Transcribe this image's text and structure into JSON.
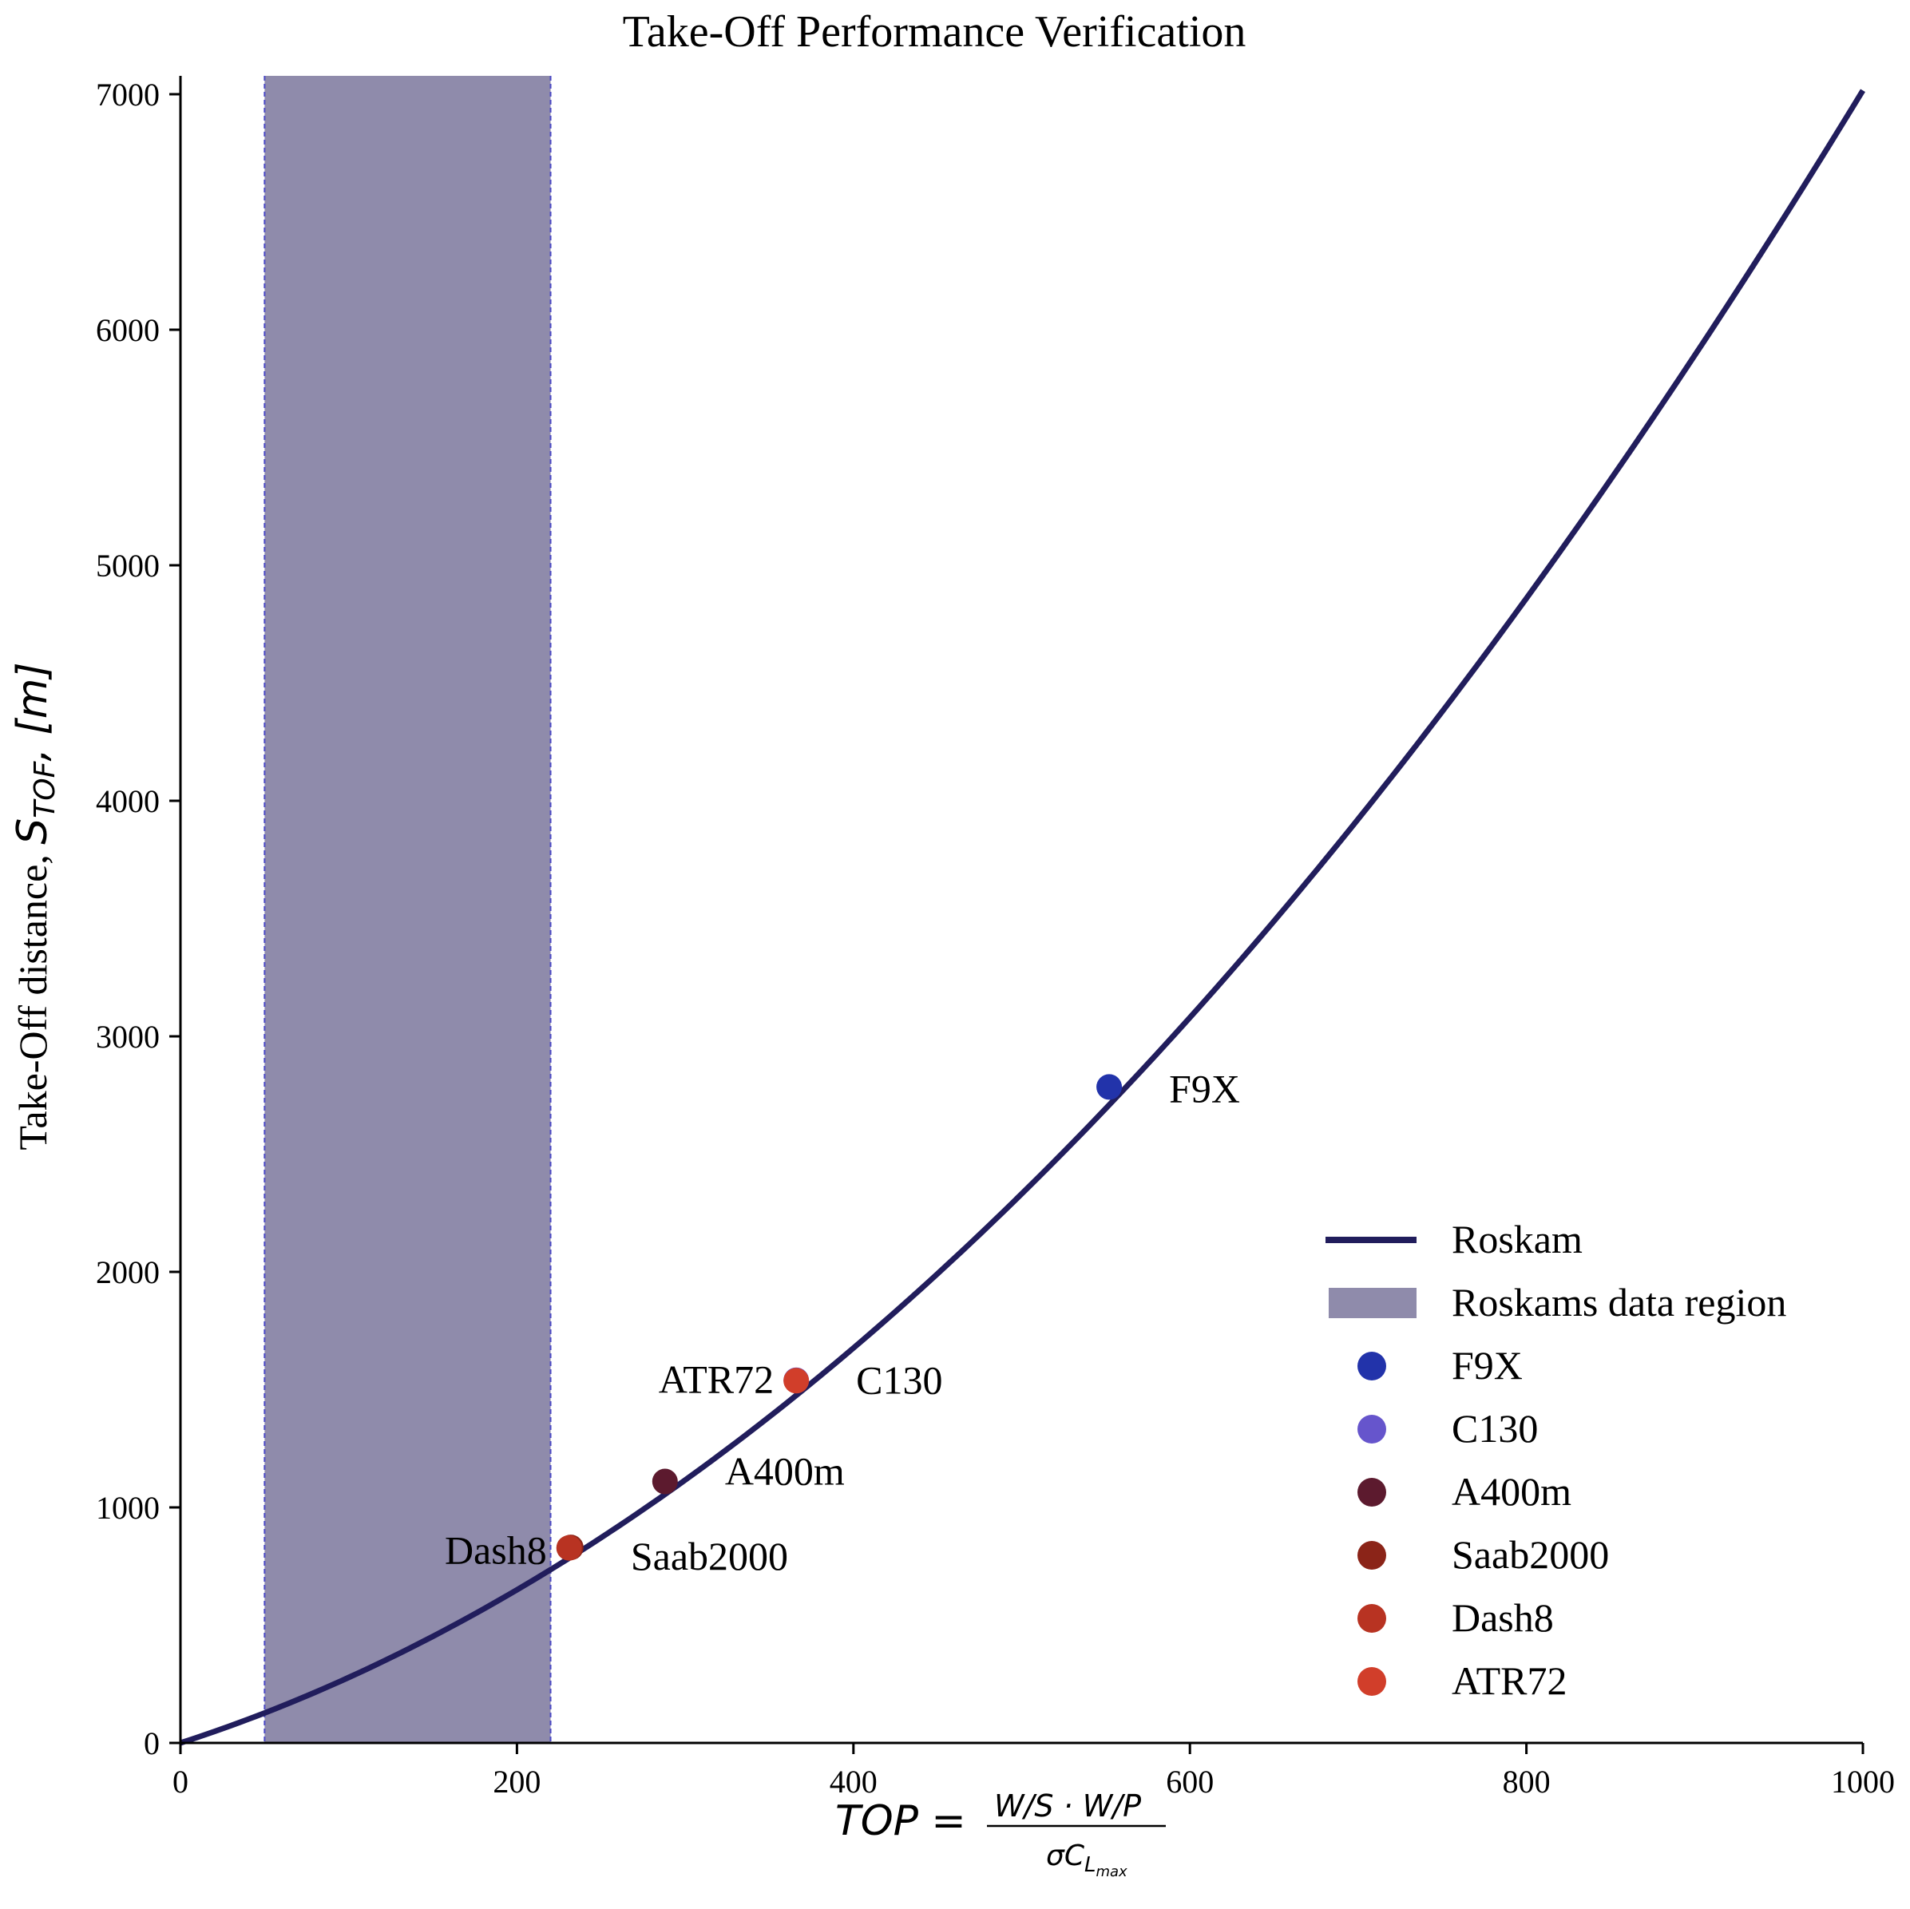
{
  "chart_data": {
    "type": "line",
    "title": "Take-Off Performance Verification",
    "xlabel": {
      "main": "TOP",
      "eq": "=",
      "num": "W/S · W/P",
      "den_prefix": "σC",
      "den_sub": "L",
      "den_subsub": "max"
    },
    "ylabel": {
      "main": "Take-Off distance, ",
      "sym": "S",
      "sub": "TOF",
      "unit": ",  [m]"
    },
    "xlim": [
      0,
      1000
    ],
    "ylim": [
      0,
      7100
    ],
    "xticks": [
      0,
      200,
      400,
      600,
      800,
      1000
    ],
    "yticks": [
      0,
      1000,
      2000,
      3000,
      4000,
      5000,
      6000,
      7000
    ],
    "grid": false,
    "legend_position": "lower-right",
    "curve": {
      "name": "Roskam",
      "color": "#211d5c",
      "formula": "S = 2.309*TOP + 0.004707*TOP^2",
      "x_range": [
        0,
        1000
      ]
    },
    "region": {
      "name": "Roskams data region",
      "x_range": [
        50,
        220
      ],
      "color": "#8f8bab",
      "edge_color": "#4a48c4"
    },
    "points": [
      {
        "name": "F9X",
        "x": 552,
        "y": 2785,
        "color": "#2233aa",
        "label": "F9X",
        "label_side": "right"
      },
      {
        "name": "C130",
        "x": 366,
        "y": 1540,
        "color": "#6655cc",
        "label": "C130",
        "label_side": "right"
      },
      {
        "name": "A400m",
        "x": 288,
        "y": 1110,
        "color": "#5c1a2e",
        "label": "A400m",
        "label_side": "right"
      },
      {
        "name": "Saab2000",
        "x": 232,
        "y": 830,
        "color": "#8b2418",
        "label": "Saab2000",
        "label_side": "right"
      },
      {
        "name": "Dash8",
        "x": 231,
        "y": 828,
        "color": "#b83322",
        "label": "Dash8",
        "label_side": "left"
      },
      {
        "name": "ATR72",
        "x": 366,
        "y": 1538,
        "color": "#d13e2a",
        "label": "ATR72",
        "label_side": "left"
      }
    ]
  }
}
